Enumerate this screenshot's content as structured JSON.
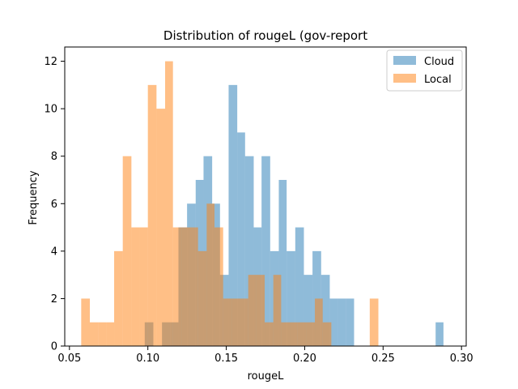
{
  "chart_data": {
    "type": "histogram",
    "title": "Distribution of rougeL (gov-report",
    "xlabel": "rougeL",
    "ylabel": "Frequency",
    "xlim": [
      0.047,
      0.303
    ],
    "ylim": [
      0,
      12.6
    ],
    "xticks": [
      0.05,
      0.1,
      0.15,
      0.2,
      0.25,
      0.3
    ],
    "xtick_labels": [
      "0.05",
      "0.10",
      "0.15",
      "0.20",
      "0.25",
      "0.30"
    ],
    "yticks": [
      0,
      2,
      4,
      6,
      8,
      10,
      12
    ],
    "ytick_labels": [
      "0",
      "2",
      "4",
      "6",
      "8",
      "10",
      "12"
    ],
    "grid": false,
    "legend_position": "top-right",
    "series": [
      {
        "name": "Cloud",
        "color": "#1f77b4",
        "alpha": 0.5,
        "bins": [
          [
            0.098,
            0.1035,
            1
          ],
          [
            0.1035,
            0.109,
            0
          ],
          [
            0.109,
            0.1145,
            1
          ],
          [
            0.1145,
            0.1195,
            1
          ],
          [
            0.1195,
            0.125,
            5
          ],
          [
            0.125,
            0.1305,
            6
          ],
          [
            0.1305,
            0.1355,
            7
          ],
          [
            0.1355,
            0.141,
            8
          ],
          [
            0.141,
            0.146,
            6
          ],
          [
            0.146,
            0.1515,
            3
          ],
          [
            0.1515,
            0.157,
            11
          ],
          [
            0.157,
            0.162,
            9
          ],
          [
            0.162,
            0.1675,
            8
          ],
          [
            0.1675,
            0.1725,
            5
          ],
          [
            0.1725,
            0.178,
            8
          ],
          [
            0.178,
            0.1835,
            4
          ],
          [
            0.1835,
            0.1885,
            7
          ],
          [
            0.1885,
            0.194,
            4
          ],
          [
            0.194,
            0.1995,
            5
          ],
          [
            0.1995,
            0.205,
            3
          ],
          [
            0.205,
            0.2105,
            4
          ],
          [
            0.2105,
            0.216,
            3
          ],
          [
            0.216,
            0.221,
            2
          ],
          [
            0.221,
            0.2265,
            2
          ],
          [
            0.2265,
            0.2315,
            2
          ],
          [
            0.2835,
            0.2885,
            1
          ]
        ]
      },
      {
        "name": "Local",
        "color": "#ff7f0e",
        "alpha": 0.5,
        "bins": [
          [
            0.0575,
            0.063,
            2
          ],
          [
            0.063,
            0.0685,
            1
          ],
          [
            0.0685,
            0.0735,
            1
          ],
          [
            0.0735,
            0.0785,
            1
          ],
          [
            0.0785,
            0.084,
            4
          ],
          [
            0.084,
            0.0895,
            8
          ],
          [
            0.0895,
            0.0945,
            5
          ],
          [
            0.0945,
            0.1,
            5
          ],
          [
            0.1,
            0.1055,
            11
          ],
          [
            0.1055,
            0.111,
            10
          ],
          [
            0.111,
            0.116,
            12
          ],
          [
            0.116,
            0.1215,
            5
          ],
          [
            0.1215,
            0.1265,
            5
          ],
          [
            0.1265,
            0.132,
            5
          ],
          [
            0.132,
            0.1375,
            4
          ],
          [
            0.1375,
            0.1425,
            6
          ],
          [
            0.1425,
            0.148,
            5
          ],
          [
            0.148,
            0.1535,
            2
          ],
          [
            0.1535,
            0.1585,
            2
          ],
          [
            0.1585,
            0.164,
            2
          ],
          [
            0.164,
            0.169,
            3
          ],
          [
            0.169,
            0.1745,
            3
          ],
          [
            0.1745,
            0.18,
            1
          ],
          [
            0.18,
            0.185,
            3
          ],
          [
            0.185,
            0.1905,
            1
          ],
          [
            0.1905,
            0.1955,
            1
          ],
          [
            0.1955,
            0.201,
            1
          ],
          [
            0.201,
            0.2065,
            1
          ],
          [
            0.2065,
            0.2115,
            2
          ],
          [
            0.2115,
            0.217,
            1
          ],
          [
            0.2415,
            0.247,
            2
          ]
        ]
      }
    ]
  }
}
